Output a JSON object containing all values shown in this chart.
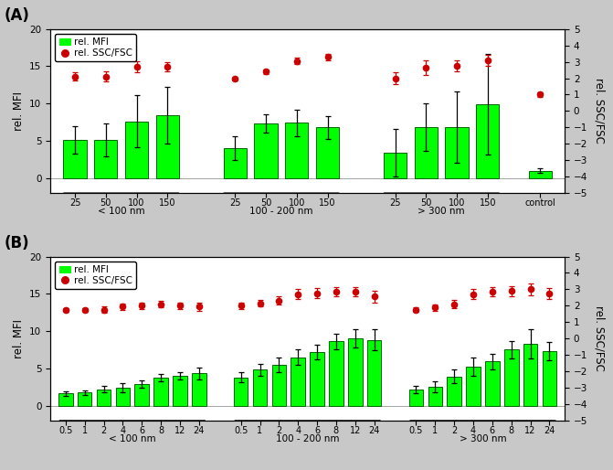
{
  "panel_A": {
    "bar_values": [
      5.1,
      5.1,
      7.6,
      8.4,
      4.0,
      7.3,
      7.4,
      6.8,
      3.4,
      6.8,
      6.8,
      9.9,
      1.0
    ],
    "bar_errors": [
      1.8,
      2.2,
      3.5,
      3.8,
      1.6,
      1.2,
      1.8,
      1.5,
      3.2,
      3.2,
      4.8,
      6.8,
      0.3
    ],
    "dot_values": [
      2.1,
      2.1,
      2.7,
      2.7,
      1.95,
      2.4,
      3.05,
      3.3,
      2.0,
      2.65,
      2.75,
      3.1,
      1.0
    ],
    "dot_errors": [
      0.25,
      0.3,
      0.35,
      0.3,
      0.1,
      0.15,
      0.2,
      0.2,
      0.35,
      0.45,
      0.35,
      0.35,
      0.15
    ],
    "bar_xlabels": [
      "25",
      "50",
      "100",
      "150",
      "25",
      "50",
      "100",
      "150",
      "25",
      "50",
      "100",
      "150",
      "control"
    ],
    "group_labels": [
      "< 100 nm",
      "100 - 200 nm",
      "> 300 nm"
    ],
    "group_sizes": [
      4,
      4,
      4
    ],
    "control_label": "control",
    "ylim_left": [
      -2,
      20
    ],
    "ylim_right": [
      -5,
      5
    ],
    "yticks_left": [
      0,
      5,
      10,
      15,
      20
    ],
    "yticks_right": [
      -5,
      -4,
      -3,
      -2,
      -1,
      0,
      1,
      2,
      3,
      4,
      5
    ],
    "ylabel_left": "rel. MFI",
    "ylabel_right": "rel. SSC/FSC"
  },
  "panel_B": {
    "bar_values": [
      1.6,
      1.75,
      2.2,
      2.4,
      2.9,
      3.7,
      4.0,
      4.3,
      3.8,
      4.8,
      5.5,
      6.5,
      7.2,
      8.6,
      9.0,
      8.8,
      2.1,
      2.5,
      3.9,
      5.2,
      5.9,
      7.5,
      8.3,
      7.3
    ],
    "bar_errors": [
      0.3,
      0.3,
      0.4,
      0.6,
      0.5,
      0.5,
      0.5,
      0.8,
      0.7,
      0.8,
      1.0,
      1.0,
      1.0,
      1.0,
      1.2,
      1.4,
      0.5,
      0.7,
      0.9,
      1.2,
      1.0,
      1.2,
      2.0,
      1.2
    ],
    "dot_values": [
      1.75,
      1.75,
      1.75,
      1.95,
      2.0,
      2.1,
      2.0,
      1.95,
      2.0,
      2.15,
      2.3,
      2.7,
      2.75,
      2.85,
      2.85,
      2.55,
      1.75,
      1.9,
      2.1,
      2.7,
      2.85,
      2.9,
      3.0,
      2.75
    ],
    "dot_errors": [
      0.1,
      0.1,
      0.2,
      0.2,
      0.2,
      0.2,
      0.2,
      0.25,
      0.2,
      0.2,
      0.25,
      0.3,
      0.3,
      0.3,
      0.3,
      0.35,
      0.15,
      0.2,
      0.25,
      0.3,
      0.3,
      0.3,
      0.35,
      0.35
    ],
    "bar_xlabels": [
      "0.5",
      "1",
      "2",
      "4",
      "6",
      "8",
      "12",
      "24",
      "0.5",
      "1",
      "2",
      "4",
      "6",
      "8",
      "12",
      "24",
      "0.5",
      "1",
      "2",
      "4",
      "6",
      "8",
      "12",
      "24"
    ],
    "group_labels": [
      "< 100 nm",
      "100 - 200 nm",
      "> 300 nm"
    ],
    "group_sizes": [
      8,
      8,
      8
    ],
    "ylim_left": [
      -2,
      20
    ],
    "ylim_right": [
      -5,
      5
    ],
    "yticks_left": [
      0,
      5,
      10,
      15,
      20
    ],
    "yticks_right": [
      -5,
      -4,
      -3,
      -2,
      -1,
      0,
      1,
      2,
      3,
      4,
      5
    ],
    "ylabel_left": "rel. MFI",
    "ylabel_right": "rel. SSC/FSC"
  },
  "bar_color": "#00FF00",
  "bar_edge_color": "#006600",
  "dot_color": "#CC0000",
  "dot_face_color": "#CC0000",
  "panel_labels": [
    "(A)",
    "(B)"
  ],
  "fig_bg": "#c8c8c8",
  "axes_bg": "#ffffff"
}
